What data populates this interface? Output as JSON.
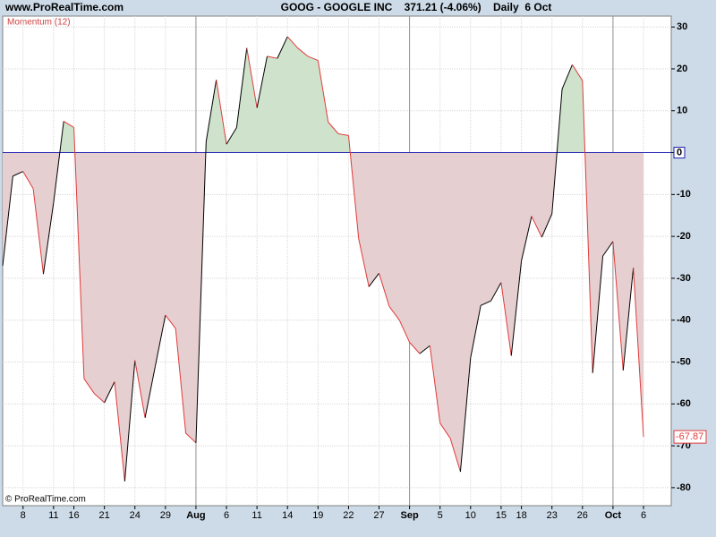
{
  "chart_data": {
    "type": "momentum",
    "site": "www.ProRealTime.com",
    "title": "GOOG - GOOGLE INC    371.21 (-4.06%)    Daily  6 Oct",
    "indicator": "Momentum (12)",
    "copyright": "© ProRealTime.com",
    "categories": [
      null,
      null,
      "8",
      null,
      null,
      "11",
      null,
      "16",
      null,
      null,
      "21",
      null,
      null,
      "24",
      null,
      null,
      "29",
      null,
      null,
      "Aug",
      null,
      null,
      "6",
      null,
      null,
      "11",
      null,
      null,
      "14",
      null,
      null,
      "19",
      null,
      null,
      "22",
      null,
      null,
      "27",
      null,
      null,
      "Sep",
      null,
      null,
      "5",
      null,
      null,
      "10",
      null,
      null,
      "15",
      null,
      "18",
      null,
      null,
      "23",
      null,
      null,
      "26",
      null,
      null,
      "Oct",
      null,
      null,
      "6"
    ],
    "values": [
      -27,
      -5.6,
      -4.5,
      -8.6,
      -29,
      -12,
      7.5,
      6,
      -54,
      -57.5,
      -59.7,
      -54.7,
      -78.5,
      -49.6,
      -63.3,
      -51,
      -38.8,
      -42,
      -67,
      -69.3,
      2.6,
      17.4,
      2,
      6,
      25,
      10.7,
      23,
      22.5,
      27.7,
      25,
      23,
      22,
      7.3,
      4.5,
      4.1,
      -20.6,
      -32,
      -28.8,
      -36.7,
      -40,
      -45.3,
      -48,
      -46.1,
      -64.6,
      -68.2,
      -76.2,
      -49,
      -36.5,
      -35.4,
      -31,
      -48.5,
      -25.8,
      -15.2,
      -20.2,
      -14.6,
      15.2,
      21,
      17.2,
      -52.6,
      -24.7,
      -21.2,
      -52,
      -27.5,
      -67.87
    ],
    "value_labels": [
      null,
      null,
      null,
      null,
      null,
      null,
      null,
      null,
      null,
      null,
      null,
      null,
      null,
      null,
      null,
      null,
      null,
      null,
      null,
      null,
      null,
      null,
      null,
      null,
      null,
      null,
      null,
      null,
      null,
      null,
      null,
      null,
      null,
      null,
      null,
      null,
      null,
      null,
      null,
      null,
      null,
      null,
      null,
      null,
      null,
      null,
      null,
      null,
      null,
      null,
      null,
      null,
      null,
      null,
      null,
      null,
      null,
      null,
      null,
      null,
      null,
      null,
      null,
      "-67.87"
    ],
    "ylim": [
      -84.3,
      32.6
    ],
    "yticks": [
      -80,
      -70,
      -60,
      -50,
      -40,
      -30,
      -20,
      -10,
      0,
      10,
      20,
      30
    ],
    "grid": true,
    "up_color": "#000000",
    "down_color": "#e03c3c",
    "positive_fill": "#cfe3cc",
    "negative_fill": "#e6cfd1",
    "zero_color": "#2020b0"
  }
}
